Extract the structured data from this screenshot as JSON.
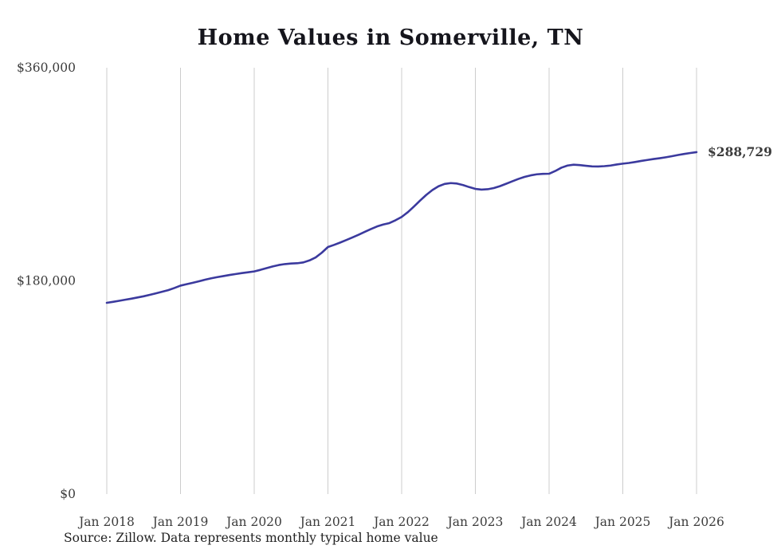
{
  "chart_data": {
    "type": "line",
    "title": "Home Values in Somerville, TN",
    "source": "Source: Zillow. Data represents monthly typical home value",
    "end_label": "$288,729",
    "line_color": "#3b3a9e",
    "end_label_color": "#32329b",
    "grid_color": "#cccccc",
    "axis_label_color": "#3c3c3c",
    "ylim": [
      0,
      360000
    ],
    "y_ticks": [
      {
        "value": 0,
        "label": "$0"
      },
      {
        "value": 180000,
        "label": "$180,000"
      },
      {
        "value": 360000,
        "label": "$360,000"
      }
    ],
    "x_tick_labels": [
      "Jan 2018",
      "Jan 2019",
      "Jan 2020",
      "Jan 2021",
      "Jan 2022",
      "Jan 2023",
      "Jan 2024",
      "Jan 2025",
      "Jan 2026"
    ],
    "points_per_year": 12,
    "grid": "vertical-only",
    "legend": "none",
    "series": [
      {
        "name": "Monthly typical home value",
        "values": [
          161500,
          162300,
          163200,
          164100,
          165000,
          166000,
          167000,
          168200,
          169500,
          170800,
          172200,
          174000,
          176000,
          177200,
          178400,
          179700,
          181000,
          182200,
          183200,
          184100,
          185000,
          185800,
          186600,
          187300,
          188000,
          189300,
          190800,
          192200,
          193400,
          194200,
          194700,
          194900,
          195600,
          197300,
          199800,
          203800,
          208600,
          210400,
          212400,
          214500,
          216700,
          219000,
          221400,
          223800,
          226000,
          227600,
          228800,
          231200,
          234000,
          238000,
          242800,
          247800,
          252600,
          256700,
          259900,
          261900,
          262600,
          262200,
          260900,
          259200,
          257700,
          257100,
          257400,
          258400,
          260000,
          262000,
          264100,
          266100,
          267800,
          269100,
          270000,
          270400,
          270500,
          272800,
          275600,
          277400,
          278100,
          277800,
          277200,
          276700,
          276600,
          276900,
          277400,
          278300,
          279000,
          279600,
          280400,
          281300,
          282100,
          282900,
          283600,
          284400,
          285300,
          286300,
          287200,
          288000,
          288729
        ]
      }
    ]
  }
}
